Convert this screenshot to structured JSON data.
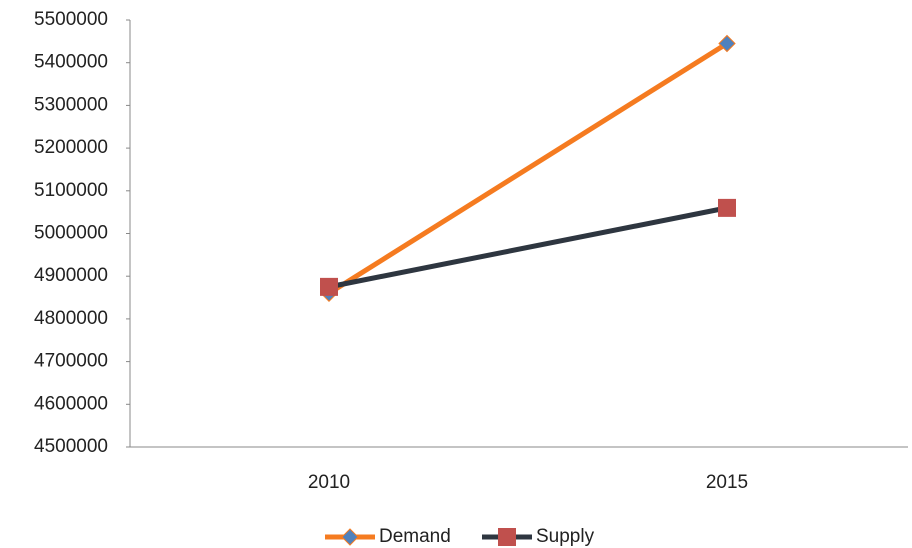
{
  "chart_data": {
    "type": "line",
    "categories": [
      "2010",
      "2015"
    ],
    "series": [
      {
        "name": "Demand",
        "color": "#f57b20",
        "marker": "diamond",
        "marker_color": "#4f81bd",
        "values": [
          4860000,
          5445000
        ]
      },
      {
        "name": "Supply",
        "color": "#2e3640",
        "marker": "square",
        "marker_color": "#c0504d",
        "values": [
          4875000,
          5060000
        ]
      }
    ],
    "ylim": [
      4500000,
      5500000
    ],
    "yticks": [
      4500000,
      4600000,
      4700000,
      4800000,
      4900000,
      5000000,
      5100000,
      5200000,
      5300000,
      5400000,
      5500000
    ],
    "grid": false,
    "legend": "bottom"
  }
}
